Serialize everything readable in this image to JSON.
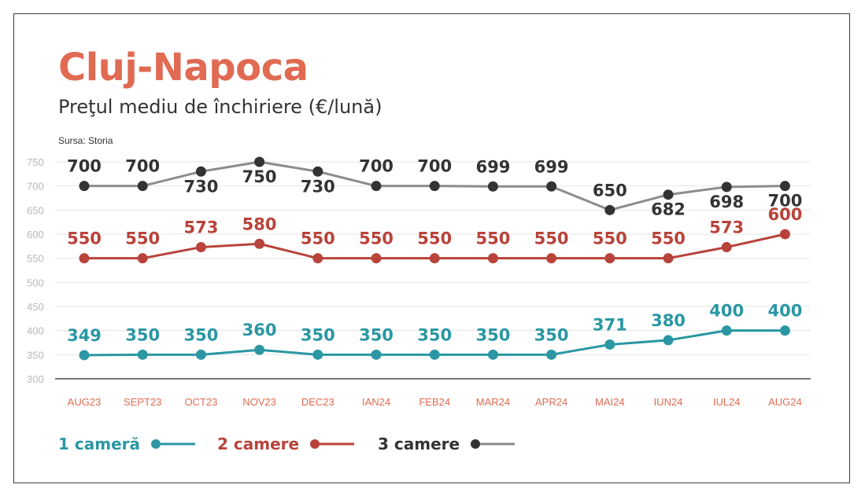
{
  "header": {
    "title": "Cluj-Napoca",
    "subtitle": "Preţul mediu de închiriere (€/lună)",
    "source": "Sursa: Storia"
  },
  "colors": {
    "title": "#e06a52",
    "one_room": "#2a97a3",
    "two_rooms": "#b8433a",
    "three_rooms_line": "#8c8c8c",
    "three_rooms_marker": "#333333",
    "axis_label": "#e06a52",
    "gridline": "#e6e6e6"
  },
  "legend": {
    "placement": "bottom-left",
    "items": [
      {
        "label": "1 cameră"
      },
      {
        "label": "2 camere"
      },
      {
        "label": "3 camere"
      }
    ]
  },
  "chart_data": {
    "type": "line",
    "title": "Cluj-Napoca",
    "subtitle": "Preţul mediu de închiriere (€/lună)",
    "xlabel": "",
    "ylabel": "",
    "categories": [
      "AUG23",
      "SEPT23",
      "OCT23",
      "NOV23",
      "DEC23",
      "IAN24",
      "FEB24",
      "MAR24",
      "APR24",
      "MAI24",
      "IUN24",
      "IUL24",
      "AUG24"
    ],
    "yticks": [
      300,
      350,
      400,
      450,
      500,
      550,
      600,
      650,
      700,
      750
    ],
    "ylim": [
      300,
      750
    ],
    "grid": true,
    "series": [
      {
        "name": "1 cameră",
        "values": [
          349,
          350,
          350,
          360,
          350,
          350,
          350,
          350,
          350,
          371,
          380,
          400,
          400
        ],
        "label_position": "above"
      },
      {
        "name": "2 camere",
        "values": [
          550,
          550,
          573,
          580,
          550,
          550,
          550,
          550,
          550,
          550,
          550,
          573,
          600
        ],
        "label_position": "above"
      },
      {
        "name": "3 camere",
        "values": [
          700,
          700,
          730,
          750,
          730,
          700,
          700,
          699,
          699,
          650,
          682,
          698,
          700
        ],
        "label_position": "mixed"
      }
    ]
  }
}
